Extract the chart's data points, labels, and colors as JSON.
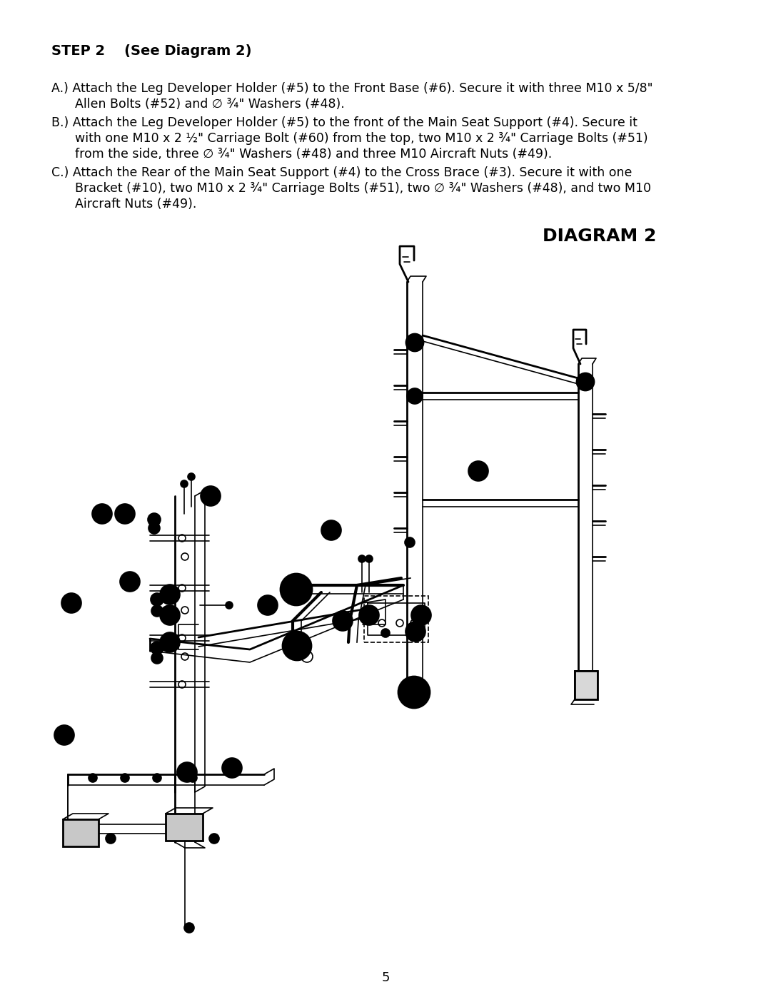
{
  "page_number": "5",
  "background_color": "#ffffff",
  "step_title": "STEP 2    (See Diagram 2)",
  "line_A1": "A.) Attach the Leg Developer Holder (#5) to the Front Base (#6). Secure it with three M10 x 5/8\"",
  "line_A2": "      Allen Bolts (#52) and ∅ ¾\" Washers (#48).",
  "line_B1": "B.) Attach the Leg Developer Holder (#5) to the front of the Main Seat Support (#4). Secure it",
  "line_B2": "      with one M10 x 2 ½\" Carriage Bolt (#60) from the top, two M10 x 2 ¾\" Carriage Bolts (#51)",
  "line_B3": "      from the side, three ∅ ¾\" Washers (#48) and three M10 Aircraft Nuts (#49).",
  "line_C1": "C.) Attach the Rear of the Main Seat Support (#4) to the Cross Brace (#3). Secure it with one",
  "line_C2": "      Bracket (#10), two M10 x 2 ¾\" Carriage Bolts (#51), two ∅ ¾\" Washers (#48), and two M10",
  "line_C3": "      Aircraft Nuts (#49).",
  "diagram_title": "DIAGRAM 2",
  "text_color": "#000000",
  "step_fontsize": 14,
  "body_fontsize": 12.5,
  "diagram_title_fontsize": 18
}
